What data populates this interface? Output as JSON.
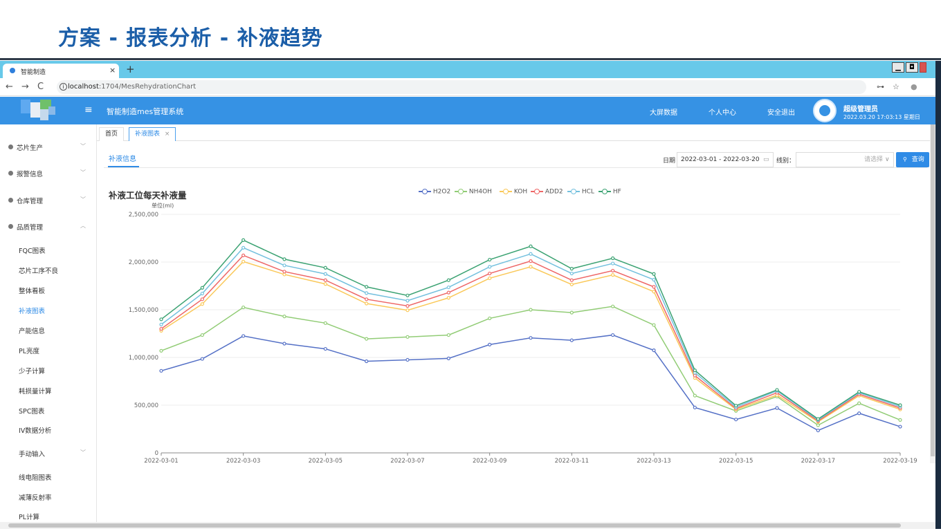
{
  "slide_title": "方案 - 报表分析 - 补液趋势",
  "browser": {
    "tab_title": "智能制造",
    "tab_close": "×",
    "new_tab": "+",
    "win_min": "▁",
    "win_max": "◘",
    "win_close": "",
    "url_host": "localhost",
    "url_path": ":1704/MesRehydrationChart",
    "back": "←",
    "forward": "→",
    "reload": "C",
    "info": "i",
    "key_icon": "⊶",
    "star_icon": "☆",
    "profile_icon": "●"
  },
  "header": {
    "menu": "≡",
    "system_name": "智能制造mes管理系统",
    "links": [
      "大屏数据",
      "个人中心",
      "安全退出"
    ],
    "user_name": "超级管理员",
    "user_time": "2022.03.20 17:03:13 星期日"
  },
  "sidebar": {
    "groups": [
      {
        "label": "芯片生产",
        "chevron": "﹀"
      },
      {
        "label": "报警信息",
        "chevron": "﹀"
      },
      {
        "label": "仓库管理",
        "chevron": "﹀"
      },
      {
        "label": "品质管理",
        "chevron": "︿"
      }
    ],
    "items": [
      "FQC图表",
      "芯片工序不良",
      "整体看板",
      "补液图表",
      "产能信息",
      "PL亮度",
      "少子计算",
      "耗损量计算",
      "SPC图表",
      "IV数据分析"
    ],
    "manual_group": {
      "label": "手动输入",
      "chevron": "﹀"
    },
    "manual_items": [
      "线电阻图表",
      "减薄反射率",
      "PL计算"
    ]
  },
  "page_tabs": {
    "home": "首页",
    "active": "补液图表",
    "close": "×"
  },
  "content": {
    "tab_label": "补液信息",
    "date_label": "日期",
    "date_value": "2022-03-01 - 2022-03-20",
    "calendar_icon": "▭",
    "line_label": "线别：",
    "line_placeholder": "请选择",
    "line_chevron": "∨",
    "query_label": "查询",
    "search_icon": "🔍"
  },
  "chart_data": {
    "type": "line",
    "title": "补液工位每天补液量",
    "ylabel": "单位(ml)",
    "ylim": [
      0,
      2500000
    ],
    "yticks": [
      "0",
      "500,000",
      "1,000,000",
      "1,500,000",
      "2,000,000",
      "2,500,000"
    ],
    "x": [
      "2022-03-01",
      "2022-03-02",
      "2022-03-03",
      "2022-03-04",
      "2022-03-05",
      "2022-03-06",
      "2022-03-07",
      "2022-03-08",
      "2022-03-09",
      "2022-03-10",
      "2022-03-11",
      "2022-03-12",
      "2022-03-13",
      "2022-03-14",
      "2022-03-15",
      "2022-03-16",
      "2022-03-17",
      "2022-03-18",
      "2022-03-19"
    ],
    "xtick_labels": [
      "2022-03-01",
      "2022-03-03",
      "2022-03-05",
      "2022-03-07",
      "2022-03-09",
      "2022-03-11",
      "2022-03-13",
      "2022-03-15",
      "2022-03-17",
      "2022-03-19"
    ],
    "legend_position": "top",
    "grid": true,
    "series": [
      {
        "name": "H2O2",
        "color": "#5470c6",
        "values": [
          860000,
          985000,
          1225000,
          1145000,
          1090000,
          960000,
          975000,
          990000,
          1135000,
          1205000,
          1180000,
          1235000,
          1075000,
          475000,
          350000,
          470000,
          235000,
          415000,
          275000
        ]
      },
      {
        "name": "NH4OH",
        "color": "#91cc75",
        "values": [
          1070000,
          1235000,
          1525000,
          1430000,
          1360000,
          1195000,
          1215000,
          1235000,
          1410000,
          1500000,
          1470000,
          1535000,
          1340000,
          600000,
          440000,
          590000,
          290000,
          520000,
          345000
        ]
      },
      {
        "name": "KOH",
        "color": "#fac858",
        "values": [
          1280000,
          1560000,
          2005000,
          1870000,
          1770000,
          1565000,
          1495000,
          1625000,
          1830000,
          1950000,
          1765000,
          1865000,
          1690000,
          785000,
          455000,
          605000,
          325000,
          600000,
          455000
        ]
      },
      {
        "name": "ADD2",
        "color": "#ee6666",
        "values": [
          1300000,
          1610000,
          2070000,
          1900000,
          1810000,
          1610000,
          1540000,
          1680000,
          1880000,
          2010000,
          1810000,
          1910000,
          1740000,
          810000,
          465000,
          630000,
          335000,
          615000,
          470000
        ]
      },
      {
        "name": "HCL",
        "color": "#73c0de",
        "values": [
          1345000,
          1670000,
          2150000,
          1965000,
          1875000,
          1675000,
          1595000,
          1735000,
          1950000,
          2085000,
          1880000,
          1985000,
          1815000,
          840000,
          480000,
          650000,
          345000,
          630000,
          485000
        ]
      },
      {
        "name": "HF",
        "color": "#3ba272",
        "values": [
          1400000,
          1730000,
          2230000,
          2030000,
          1940000,
          1740000,
          1650000,
          1810000,
          2025000,
          2165000,
          1930000,
          2040000,
          1875000,
          865000,
          495000,
          660000,
          355000,
          640000,
          500000
        ]
      }
    ]
  },
  "colors": {
    "header_blue": "#3692e4",
    "accent": "#2f8be6",
    "slide_title": "#1b5ea8",
    "tab_bar": "#68c9e9"
  }
}
